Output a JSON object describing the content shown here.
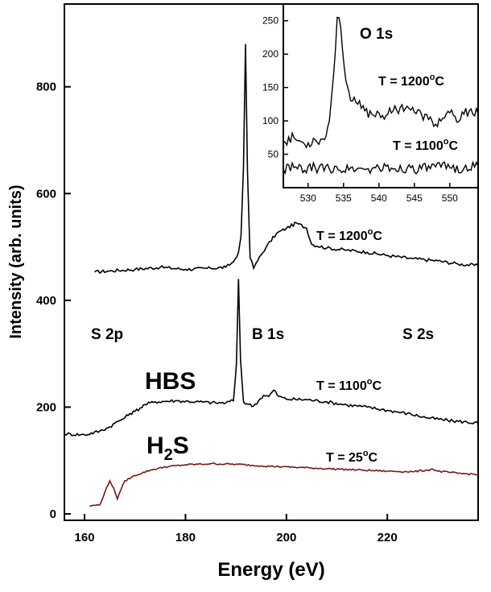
{
  "chart_data": [
    {
      "type": "line",
      "xlabel": "Energy (eV)",
      "ylabel": "Intensity (arb. units)",
      "xlim": [
        156,
        238
      ],
      "ylim": [
        -12,
        955
      ],
      "x_ticks": [
        160,
        180,
        200,
        220
      ],
      "y_ticks": [
        0,
        200,
        400,
        600,
        800
      ],
      "annotations": [
        {
          "id": "s2p",
          "text": "S 2p"
        },
        {
          "id": "b1s",
          "text": "B 1s"
        },
        {
          "id": "s2s",
          "text": "S 2s"
        },
        {
          "id": "hbs",
          "text": "HBS"
        },
        {
          "id": "h2s",
          "text": "H",
          "sub": "2",
          "tail": "S"
        }
      ],
      "series": [
        {
          "label": {
            "prefix": "T = 1200",
            "sup": "o",
            "suffix": "C"
          },
          "color": "#000000",
          "points": [
            [
              162,
              453
            ],
            [
              165,
              455
            ],
            [
              170,
              458
            ],
            [
              175,
              462
            ],
            [
              180,
              458
            ],
            [
              185,
              460
            ],
            [
              188,
              462
            ],
            [
              189.5,
              472
            ],
            [
              190.5,
              490
            ],
            [
              191,
              520
            ],
            [
              191.5,
              650
            ],
            [
              191.9,
              880
            ],
            [
              192.3,
              640
            ],
            [
              192.8,
              480
            ],
            [
              193.5,
              460
            ],
            [
              194,
              470
            ],
            [
              196,
              500
            ],
            [
              198,
              525
            ],
            [
              200,
              535
            ],
            [
              202,
              545
            ],
            [
              204,
              535
            ],
            [
              205,
              505
            ],
            [
              208,
              498
            ],
            [
              212,
              494
            ],
            [
              216,
              490
            ],
            [
              220,
              484
            ],
            [
              225,
              478
            ],
            [
              230,
              474
            ],
            [
              234,
              468
            ],
            [
              238,
              465
            ]
          ]
        },
        {
          "label": {
            "prefix": "T = 1100",
            "sup": "o",
            "suffix": "C"
          },
          "color": "#000000",
          "points": [
            [
              156,
              150
            ],
            [
              160,
              148
            ],
            [
              163,
              155
            ],
            [
              165,
              163
            ],
            [
              166,
              170
            ],
            [
              167,
              175
            ],
            [
              168,
              180
            ],
            [
              169,
              188
            ],
            [
              170,
              192
            ],
            [
              172,
              205
            ],
            [
              174,
              210
            ],
            [
              178,
              212
            ],
            [
              182,
              210
            ],
            [
              186,
              208
            ],
            [
              188,
              208
            ],
            [
              189.5,
              212
            ],
            [
              190.1,
              280
            ],
            [
              190.5,
              440
            ],
            [
              190.9,
              290
            ],
            [
              191.5,
              210
            ],
            [
              192.5,
              205
            ],
            [
              193.5,
              202
            ],
            [
              194.5,
              212
            ],
            [
              195.5,
              222
            ],
            [
              196.5,
              220
            ],
            [
              197.5,
              232
            ],
            [
              198.5,
              220
            ],
            [
              200,
              215
            ],
            [
              204,
              214
            ],
            [
              208,
              210
            ],
            [
              212,
              204
            ],
            [
              216,
              200
            ],
            [
              220,
              194
            ],
            [
              224,
              188
            ],
            [
              228,
              180
            ],
            [
              232,
              175
            ],
            [
              238,
              170
            ]
          ]
        },
        {
          "label": {
            "prefix": "T = 25",
            "sup": "o",
            "suffix": "C"
          },
          "color": "#7a1616",
          "points": [
            [
              161,
              15
            ],
            [
              163,
              17
            ],
            [
              164,
              40
            ],
            [
              165,
              62
            ],
            [
              165.8,
              48
            ],
            [
              166.5,
              28
            ],
            [
              167.2,
              45
            ],
            [
              168,
              62
            ],
            [
              170,
              72
            ],
            [
              173,
              82
            ],
            [
              176,
              88
            ],
            [
              180,
              92
            ],
            [
              185,
              94
            ],
            [
              190,
              93
            ],
            [
              195,
              90
            ],
            [
              200,
              88
            ],
            [
              205,
              86
            ],
            [
              210,
              84
            ],
            [
              215,
              82
            ],
            [
              220,
              80
            ],
            [
              225,
              79
            ],
            [
              228,
              82
            ],
            [
              229,
              84
            ],
            [
              230,
              80
            ],
            [
              234,
              76
            ],
            [
              238,
              74
            ]
          ]
        }
      ]
    },
    {
      "type": "line",
      "title": "O 1s",
      "xlim": [
        526.5,
        554
      ],
      "ylim": [
        0,
        275
      ],
      "x_ticks": [
        530,
        535,
        540,
        545,
        550
      ],
      "y_ticks": [
        50,
        100,
        150,
        200,
        250
      ],
      "series": [
        {
          "label": {
            "prefix": "T = 1200",
            "sup": "o",
            "suffix": "C"
          },
          "color": "#000000",
          "points": [
            [
              526.5,
              70
            ],
            [
              528,
              75
            ],
            [
              529.5,
              65
            ],
            [
              531,
              72
            ],
            [
              532.3,
              72
            ],
            [
              533,
              100
            ],
            [
              533.6,
              170
            ],
            [
              534.1,
              255
            ],
            [
              534.6,
              240
            ],
            [
              535.1,
              180
            ],
            [
              536,
              130
            ],
            [
              537,
              125
            ],
            [
              538,
              115
            ],
            [
              539,
              110
            ],
            [
              540,
              112
            ],
            [
              541,
              108
            ],
            [
              542,
              115
            ],
            [
              543,
              120
            ],
            [
              544,
              122
            ],
            [
              545,
              113
            ],
            [
              546,
              110
            ],
            [
              547,
              102
            ],
            [
              548,
              95
            ],
            [
              549,
              104
            ],
            [
              550,
              112
            ],
            [
              551,
              98
            ],
            [
              552,
              110
            ],
            [
              553,
              118
            ],
            [
              554,
              110
            ]
          ]
        },
        {
          "label": {
            "prefix": "T = 1100",
            "sup": "o",
            "suffix": "C"
          },
          "color": "#000000",
          "points": [
            [
              526.5,
              28
            ],
            [
              528,
              30
            ],
            [
              529.5,
              26
            ],
            [
              531,
              30
            ],
            [
              533,
              28
            ],
            [
              534,
              32
            ],
            [
              535,
              25
            ],
            [
              536,
              30
            ],
            [
              538,
              27
            ],
            [
              540,
              30
            ],
            [
              542,
              28
            ],
            [
              544,
              30
            ],
            [
              546,
              28
            ],
            [
              548,
              31
            ],
            [
              550,
              30
            ],
            [
              552,
              29
            ],
            [
              554,
              32
            ]
          ]
        }
      ]
    }
  ]
}
